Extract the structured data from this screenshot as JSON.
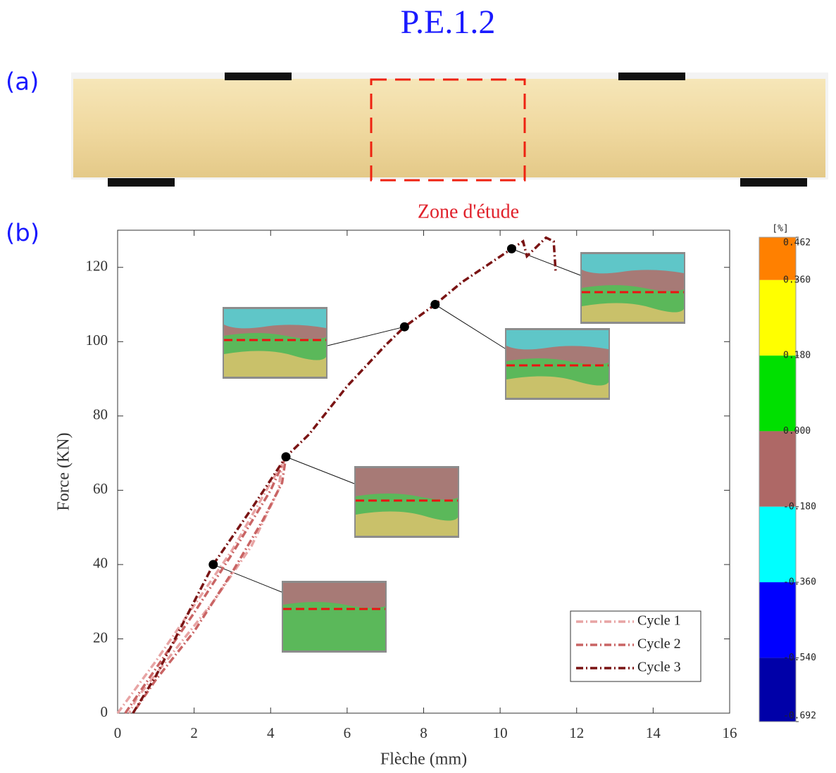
{
  "header": {
    "title": "P.E.1.2"
  },
  "labels": {
    "a": "(a)",
    "b": "(b)",
    "zone": "Zone d'étude"
  },
  "chart_data": [
    {
      "type": "line",
      "x_label": "Flèche (mm)",
      "y_label": "Force (KN)",
      "xlim": [
        0,
        16
      ],
      "xticks": [
        0,
        2,
        4,
        6,
        8,
        10,
        12,
        14,
        16
      ],
      "ylim": [
        0,
        130
      ],
      "yticks": [
        0,
        20,
        40,
        60,
        80,
        100,
        120
      ],
      "legend": "lower right",
      "series": [
        {
          "name": "Cycle 1",
          "color": "#e8a4a4",
          "x": [
            0,
            1,
            2,
            3,
            4,
            4.3,
            4.2,
            3.5,
            2.5,
            1.5,
            0.5,
            0.3
          ],
          "values": [
            0,
            14,
            29,
            44,
            62,
            67,
            60,
            45,
            30,
            17,
            4,
            0
          ]
        },
        {
          "name": "Cycle 2",
          "color": "#c96464",
          "x": [
            0.2,
            1,
            2,
            3,
            4,
            4.4,
            4.3,
            3.8,
            3,
            2,
            1,
            0.4
          ],
          "values": [
            0,
            12,
            27,
            43,
            60,
            69,
            62,
            52,
            38,
            22,
            9,
            0
          ]
        },
        {
          "name": "Cycle 3",
          "color": "#7a1414",
          "x": [
            0.4,
            1,
            2,
            2.5,
            3.5,
            4.4,
            5,
            6,
            7,
            7.5,
            8.3,
            9,
            10.3,
            10.6,
            10.7,
            11.2,
            11.4,
            11.45
          ],
          "values": [
            0,
            10,
            30,
            40,
            55,
            69,
            75,
            88,
            99,
            104,
            110,
            116,
            125,
            127,
            123,
            128,
            127,
            119
          ]
        }
      ],
      "markers": {
        "x": [
          2.5,
          4.4,
          7.5,
          8.3,
          10.3
        ],
        "values": [
          40,
          69,
          104,
          110,
          125
        ]
      }
    },
    {
      "type": "colorbar",
      "label": "[%]",
      "ylim": [
        -0.692,
        0.462
      ],
      "yticks": [
        {
          "value": 0.462,
          "label": "0.462"
        },
        {
          "value": 0.36,
          "label": "0.360"
        },
        {
          "value": 0.18,
          "label": "0.180"
        },
        {
          "value": 0,
          "label": "0.000"
        },
        {
          "value": -0.18,
          "label": "-0.180"
        },
        {
          "value": -0.36,
          "label": "-0.360"
        },
        {
          "value": -0.54,
          "label": "-0.540"
        },
        {
          "value": -0.692,
          "label": "-0.692"
        }
      ],
      "colors": [
        "#ff8000",
        "#ffff00",
        "#00e000",
        "#ae6866",
        "#00ffff",
        "#0000ff",
        "#0000a8"
      ]
    }
  ]
}
